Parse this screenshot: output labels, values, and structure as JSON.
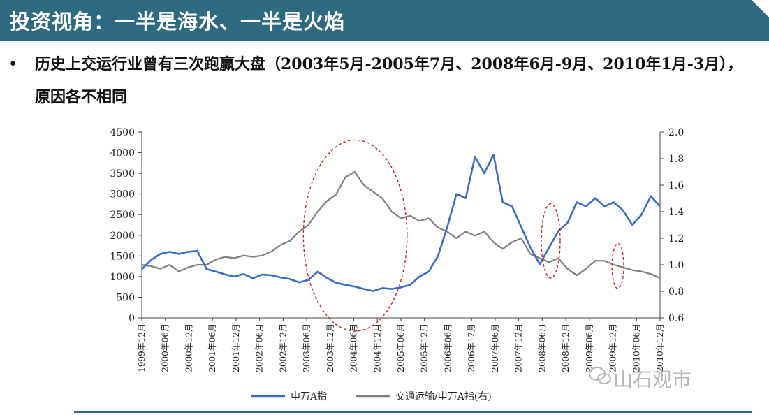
{
  "slide": {
    "title": "投资视角：一半是海水、一半是火焰",
    "bullet_marker": "•",
    "bullet": "历史上交运行业曾有三次跑赢大盘（2003年5月-2005年7月、2008年6月-9月、2010年1月-3月），原因各不相同",
    "watermark": "山石观市",
    "colors": {
      "banner": "#2e6a80",
      "series1": "#3b6cc4",
      "series2": "#7f7f7f",
      "annotation": "#cc2222"
    }
  },
  "chart_data": {
    "type": "line",
    "x_labels": [
      "1999年12月",
      "2000年06月",
      "2000年12月",
      "2001年06月",
      "2001年12月",
      "2002年06月",
      "2002年12月",
      "2003年06月",
      "2003年12月",
      "2004年06月",
      "2004年12月",
      "2005年06月",
      "2005年12月",
      "2006年06月",
      "2006年12月",
      "2007年06月",
      "2007年12月",
      "2008年06月",
      "2008年12月",
      "2009年06月",
      "2009年12月",
      "2010年06月",
      "2010年12月"
    ],
    "y_left": {
      "min": 0,
      "max": 4500,
      "ticks": [
        "4500",
        "4000",
        "3500",
        "3000",
        "2500",
        "2000",
        "1500",
        "1000",
        "500",
        "0"
      ]
    },
    "y_right": {
      "min": 0.6,
      "max": 2.0,
      "ticks": [
        "2.0",
        "1.8",
        "1.6",
        "1.4",
        "1.2",
        "1.0",
        "0.8",
        "0.6"
      ]
    },
    "series": [
      {
        "name": "申万A指",
        "axis": "left",
        "values": [
          1180,
          1400,
          1550,
          1600,
          1550,
          1600,
          1620,
          1180,
          1120,
          1050,
          1000,
          1060,
          960,
          1050,
          1030,
          980,
          940,
          860,
          920,
          1120,
          970,
          850,
          800,
          760,
          700,
          650,
          720,
          700,
          740,
          800,
          1000,
          1120,
          1500,
          2200,
          3000,
          2900,
          3900,
          3500,
          3950,
          2800,
          2700,
          2200,
          1700,
          1300,
          1700,
          2100,
          2300,
          2800,
          2700,
          2900,
          2700,
          2800,
          2600,
          2250,
          2500,
          2950,
          2700
        ]
      },
      {
        "name": "交通运输/申万A指(右)",
        "axis": "right",
        "values": [
          1.0,
          0.99,
          0.97,
          1.0,
          0.95,
          0.98,
          1.0,
          1.0,
          1.04,
          1.06,
          1.05,
          1.07,
          1.06,
          1.07,
          1.1,
          1.15,
          1.18,
          1.25,
          1.3,
          1.4,
          1.48,
          1.53,
          1.66,
          1.7,
          1.6,
          1.55,
          1.5,
          1.4,
          1.35,
          1.37,
          1.33,
          1.35,
          1.28,
          1.25,
          1.2,
          1.25,
          1.22,
          1.25,
          1.17,
          1.12,
          1.17,
          1.2,
          1.08,
          1.05,
          1.02,
          1.05,
          0.97,
          0.92,
          0.97,
          1.03,
          1.03,
          1.0,
          0.98,
          0.96,
          0.95,
          0.93,
          0.9
        ]
      }
    ],
    "annotations": [
      {
        "x_range": [
          2003.35,
          2005.55
        ],
        "y_center_right": 1.22,
        "y_radius_right": 0.72
      },
      {
        "x_range": [
          2008.4,
          2008.8
        ],
        "y_center_right": 1.18,
        "y_radius_right": 0.28
      },
      {
        "x_range": [
          2009.9,
          2010.15
        ],
        "y_center_right": 0.99,
        "y_radius_right": 0.17
      }
    ]
  }
}
